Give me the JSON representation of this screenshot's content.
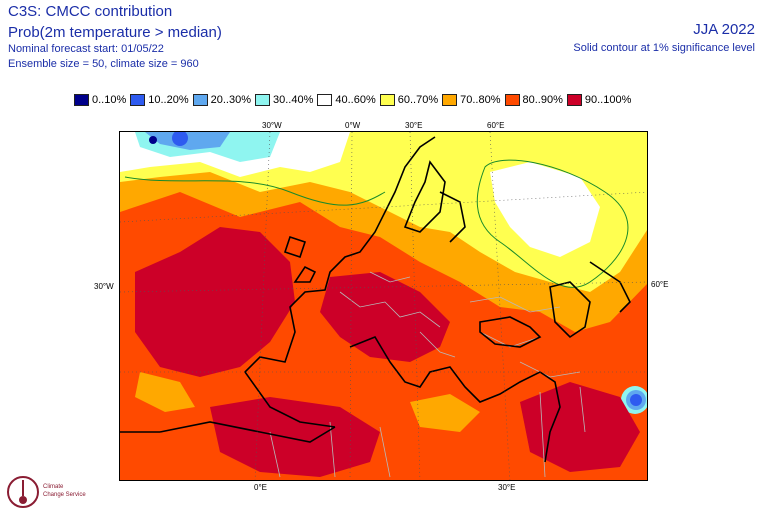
{
  "header": {
    "title": "C3S: CMCC contribution",
    "variable": "Prob(2m temperature > median)",
    "forecast_start": "Nominal forecast start: 01/05/22",
    "ensemble": "Ensemble size = 50, climate size = 960",
    "season": "JJA 2022",
    "contour_note": "Solid contour at 1% significance level"
  },
  "legend": [
    {
      "label": "0..10%",
      "color": "#00008b"
    },
    {
      "label": "10..20%",
      "color": "#2e5bf0"
    },
    {
      "label": "20..30%",
      "color": "#5fa8ef"
    },
    {
      "label": "30..40%",
      "color": "#8ff5f0"
    },
    {
      "label": "40..60%",
      "color": "#ffffff"
    },
    {
      "label": "60..70%",
      "color": "#ffff50"
    },
    {
      "label": "70..80%",
      "color": "#ffa800"
    },
    {
      "label": "80..90%",
      "color": "#ff4a00"
    },
    {
      "label": "90..100%",
      "color": "#cc0028"
    }
  ],
  "axes": {
    "top_labels": [
      "30°W",
      "0°W",
      "30°E",
      "60°E"
    ],
    "left_label": "30°W",
    "right_label": "60°E",
    "bottom_labels": [
      "0°E",
      "30°E"
    ]
  },
  "logo": {
    "line1": "Climate",
    "line2": "Change Service"
  }
}
